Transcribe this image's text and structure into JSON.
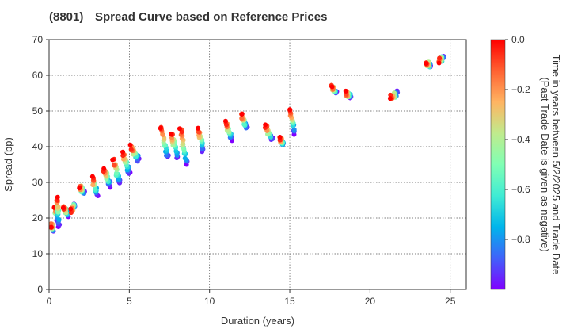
{
  "chart_data": {
    "type": "scatter",
    "title_code": "(8801)",
    "title": "Spread Curve based on Reference Prices",
    "xlabel": "Duration (years)",
    "ylabel": "Spread (bp)",
    "xlim": [
      0,
      26
    ],
    "ylim": [
      0,
      70
    ],
    "xticks": [
      0,
      5,
      10,
      15,
      20,
      25
    ],
    "yticks": [
      0,
      10,
      20,
      30,
      40,
      50,
      60,
      70
    ],
    "grid": true,
    "colorbar": {
      "label_line1": "Time in years between 5/2/2025 and Trade Date",
      "label_line2": "(Past Trade Date is given as negative)",
      "range": [
        -1.0,
        0.0
      ],
      "ticks": [
        0.0,
        -0.2,
        -0.4,
        -0.6,
        -0.8
      ],
      "tick_labels": [
        "0.0",
        "−0.2",
        "−0.4",
        "−0.6",
        "−0.8"
      ],
      "colormap": [
        "#8000ff",
        "#4062fa",
        "#00b5eb",
        "#40ecd4",
        "#80ffb4",
        "#c0eb8d",
        "#ffb462",
        "#ff6232",
        "#ff0000"
      ]
    },
    "clusters": [
      {
        "d": 0.25,
        "s_old": 17,
        "s_new": 18,
        "spread_x": 0.1
      },
      {
        "d": 0.5,
        "s_old": 20,
        "s_new": 23,
        "spread_x": 0.15
      },
      {
        "d": 0.6,
        "s_old": 18,
        "s_new": 26,
        "spread_x": 0.1
      },
      {
        "d": 1.2,
        "s_old": 21,
        "s_new": 23,
        "spread_x": 0.3
      },
      {
        "d": 1.6,
        "s_old": 24,
        "s_new": 22,
        "spread_x": 0.2
      },
      {
        "d": 2.2,
        "s_old": 27,
        "s_new": 29,
        "spread_x": 0.3
      },
      {
        "d": 3.0,
        "s_old": 27,
        "s_new": 31,
        "spread_x": 0.3
      },
      {
        "d": 3.8,
        "s_old": 29,
        "s_new": 34,
        "spread_x": 0.4
      },
      {
        "d": 4.4,
        "s_old": 30,
        "s_new": 36,
        "spread_x": 0.4
      },
      {
        "d": 5.0,
        "s_old": 33,
        "s_new": 38,
        "spread_x": 0.4
      },
      {
        "d": 5.6,
        "s_old": 36,
        "s_new": 40,
        "spread_x": 0.5
      },
      {
        "d": 7.4,
        "s_old": 37,
        "s_new": 45,
        "spread_x": 0.4
      },
      {
        "d": 8.0,
        "s_old": 37,
        "s_new": 44,
        "spread_x": 0.4
      },
      {
        "d": 8.6,
        "s_old": 35,
        "s_new": 45,
        "spread_x": 0.4
      },
      {
        "d": 9.6,
        "s_old": 39,
        "s_new": 45,
        "spread_x": 0.3
      },
      {
        "d": 11.4,
        "s_old": 42,
        "s_new": 47,
        "spread_x": 0.4
      },
      {
        "d": 12.3,
        "s_old": 45,
        "s_new": 49,
        "spread_x": 0.3
      },
      {
        "d": 13.9,
        "s_old": 42,
        "s_new": 46,
        "spread_x": 0.4
      },
      {
        "d": 14.6,
        "s_old": 41,
        "s_new": 42,
        "spread_x": 0.2
      },
      {
        "d": 15.3,
        "s_old": 44,
        "s_new": 50,
        "spread_x": 0.3
      },
      {
        "d": 17.9,
        "s_old": 55,
        "s_new": 57,
        "spread_x": 0.3
      },
      {
        "d": 18.8,
        "s_old": 54,
        "s_new": 55,
        "spread_x": 0.3
      },
      {
        "d": 21.7,
        "s_old": 55,
        "s_new": 54,
        "spread_x": 0.4
      },
      {
        "d": 23.8,
        "s_old": 63,
        "s_new": 63,
        "spread_x": 0.3
      },
      {
        "d": 24.6,
        "s_old": 65,
        "s_new": 64,
        "spread_x": 0.3
      }
    ]
  }
}
